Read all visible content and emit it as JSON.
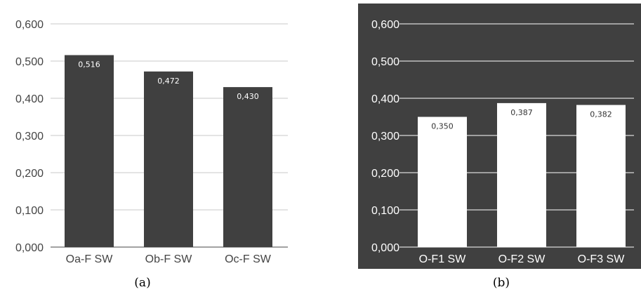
{
  "chart_data": [
    {
      "type": "bar",
      "caption": "(a)",
      "categories": [
        "Oa-F SW",
        "Ob-F SW",
        "Oc-F SW"
      ],
      "values": [
        0.516,
        0.472,
        0.43
      ],
      "value_labels": [
        "0,516",
        "0,472",
        "0,430"
      ],
      "yticks": [
        "0,000",
        "0,100",
        "0,200",
        "0,300",
        "0,400",
        "0,500",
        "0,600"
      ],
      "ylim": [
        0,
        0.6
      ],
      "grid": true,
      "style": {
        "background": "#ffffff",
        "bar_color": "#404040",
        "grid_color": "#c8c8c8",
        "text_color": "#444444",
        "label_color": "#ffffff"
      }
    },
    {
      "type": "bar",
      "caption": "(b)",
      "categories": [
        "O-F1 SW",
        "O-F2 SW",
        "O-F3 SW"
      ],
      "values": [
        0.35,
        0.387,
        0.382
      ],
      "value_labels": [
        "0,350",
        "0,387",
        "0,382"
      ],
      "yticks": [
        "0,000",
        "0,100",
        "0,200",
        "0,300",
        "0,400",
        "0,500",
        "0,600"
      ],
      "ylim": [
        0,
        0.6
      ],
      "grid": true,
      "style": {
        "background": "#404040",
        "bar_color": "#ffffff",
        "grid_color": "#ffffff",
        "text_color": "#ffffff",
        "label_color": "#333333"
      }
    }
  ]
}
